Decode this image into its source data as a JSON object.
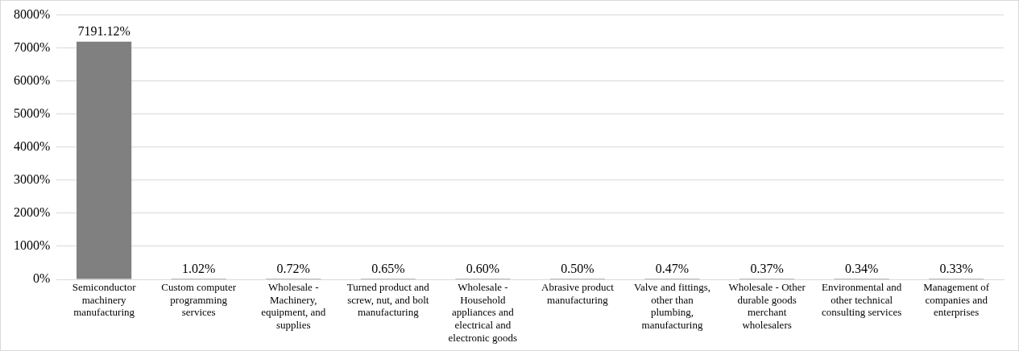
{
  "chart_data": {
    "type": "bar",
    "categories": [
      "Semiconductor machinery manufacturing",
      "Custom computer programming services",
      "Wholesale - Machinery, equipment, and supplies",
      "Turned product and screw, nut, and bolt manufacturing",
      "Wholesale - Household appliances and electrical and electronic goods",
      "Abrasive product manufacturing",
      "Valve and fittings, other than plumbing, manufacturing",
      "Wholesale - Other durable goods merchant wholesalers",
      "Environmental and other technical consulting services",
      "Management of companies and enterprises"
    ],
    "values": [
      7191.12,
      1.02,
      0.72,
      0.65,
      0.6,
      0.5,
      0.47,
      0.37,
      0.34,
      0.33
    ],
    "value_labels": [
      "7191.12%",
      "1.02%",
      "0.72%",
      "0.65%",
      "0.60%",
      "0.50%",
      "0.47%",
      "0.37%",
      "0.34%",
      "0.33%"
    ],
    "color": "#808080",
    "ylim": [
      0,
      8000
    ],
    "yticks": [
      {
        "value": 0,
        "label": "0%"
      },
      {
        "value": 1000,
        "label": "1000%"
      },
      {
        "value": 2000,
        "label": "2000%"
      },
      {
        "value": 3000,
        "label": "3000%"
      },
      {
        "value": 4000,
        "label": "4000%"
      },
      {
        "value": 5000,
        "label": "5000%"
      },
      {
        "value": 6000,
        "label": "6000%"
      },
      {
        "value": 7000,
        "label": "7000%"
      },
      {
        "value": 8000,
        "label": "8000%"
      }
    ],
    "grid": "y"
  }
}
